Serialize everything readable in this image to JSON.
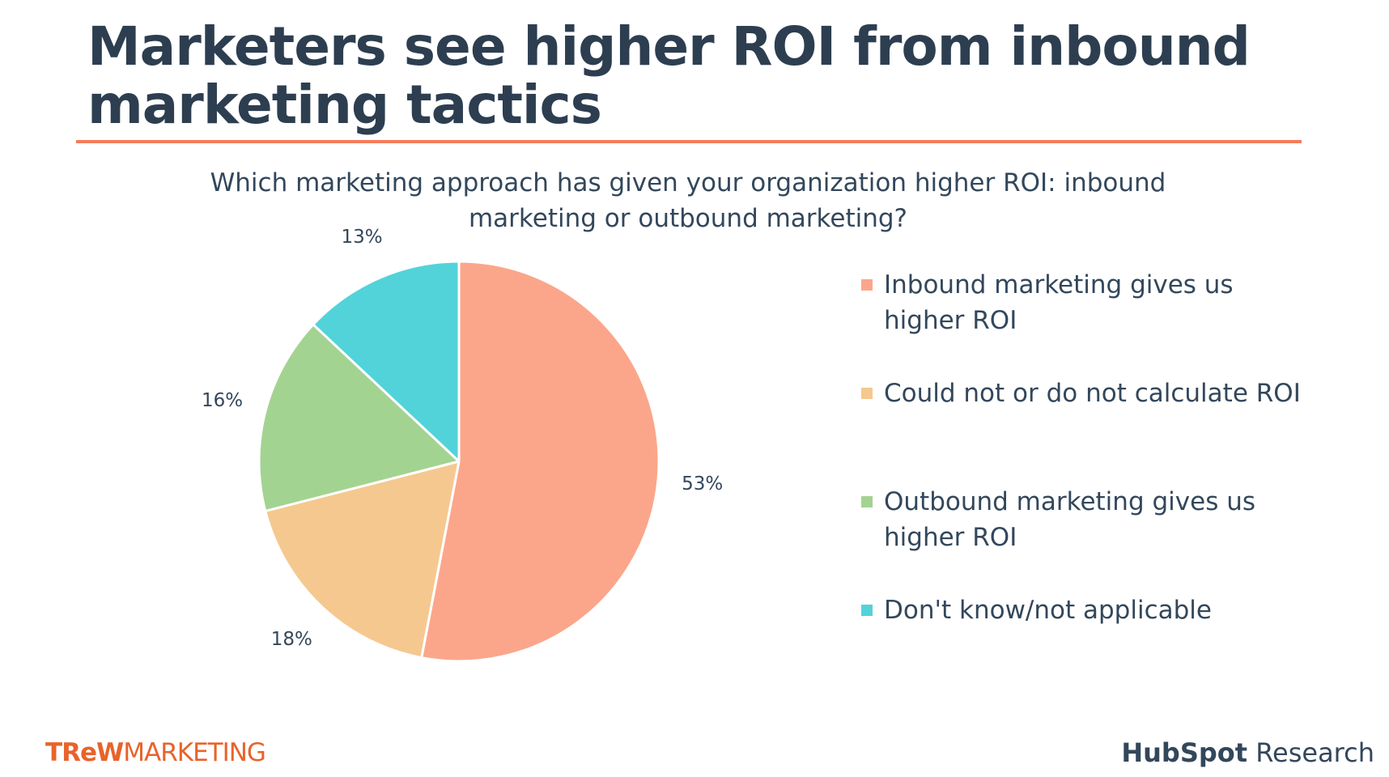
{
  "slide": {
    "title_lines": [
      "Marketers see higher ROI from inbound",
      "marketing tactics"
    ],
    "question_lines": [
      "Which marketing approach has given your organization higher ROI: inbound",
      "marketing or outbound marketing?"
    ],
    "accent_color": "#f47c5a"
  },
  "chart_data": {
    "type": "pie",
    "title": "Which marketing approach has given your organization higher ROI: inbound marketing or outbound marketing?",
    "slices": [
      {
        "name": "Inbound marketing gives us higher ROI",
        "legend_lines": [
          "Inbound marketing gives us",
          "higher ROI"
        ],
        "value": 53,
        "label": "53%",
        "color": "#fba68b"
      },
      {
        "name": "Could not or do not calculate ROI",
        "legend_lines": [
          "Could not or do not calculate ROI"
        ],
        "value": 18,
        "label": "18%",
        "color": "#f5c890"
      },
      {
        "name": "Outbound marketing gives us higher ROI",
        "legend_lines": [
          "Outbound marketing gives us",
          "higher ROI"
        ],
        "value": 16,
        "label": "16%",
        "color": "#a3d391"
      },
      {
        "name": "Don't know/not applicable",
        "legend_lines": [
          "Don't know/not applicable"
        ],
        "value": 13,
        "label": "13%",
        "color": "#52d3d9"
      }
    ],
    "legend_placement": "right"
  },
  "logos": {
    "trew_bold": "TReW",
    "trew_rest": "MARKETING",
    "hubspot_bold": "HubSpot",
    "hubspot_rest": " Research"
  }
}
